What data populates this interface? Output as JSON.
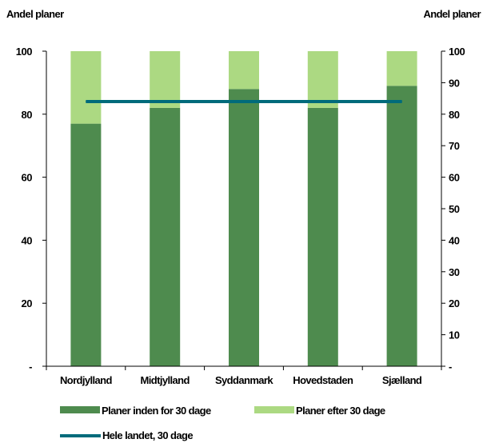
{
  "chart_data": {
    "type": "bar",
    "stacked": true,
    "y_left_label": "Andel planer",
    "y_right_label": "Andel planer",
    "ylim_left": [
      0,
      100
    ],
    "ylim_right": [
      0,
      100
    ],
    "y_left_ticks": [
      "-",
      "20",
      "40",
      "60",
      "80",
      "100"
    ],
    "y_right_ticks": [
      "-",
      "10",
      "20",
      "30",
      "40",
      "50",
      "60",
      "70",
      "80",
      "90",
      "100"
    ],
    "categories": [
      "Nordjylland",
      "Midtjylland",
      "Syddanmark",
      "Hovedstaden",
      "Sjælland"
    ],
    "series": [
      {
        "name": "Planer inden for 30 dage",
        "kind": "bar",
        "color": "#4e8b4e",
        "values": [
          77,
          82,
          88,
          82,
          89
        ]
      },
      {
        "name": "Planer efter 30 dage",
        "kind": "bar",
        "color": "#acd982",
        "values": [
          23,
          18,
          12,
          18,
          11
        ]
      },
      {
        "name": "Hele landet, 30 dage",
        "kind": "line",
        "color": "#006b7b",
        "values": [
          84,
          84,
          84,
          84,
          84
        ]
      }
    ],
    "grid": false,
    "legend_position": "bottom"
  }
}
